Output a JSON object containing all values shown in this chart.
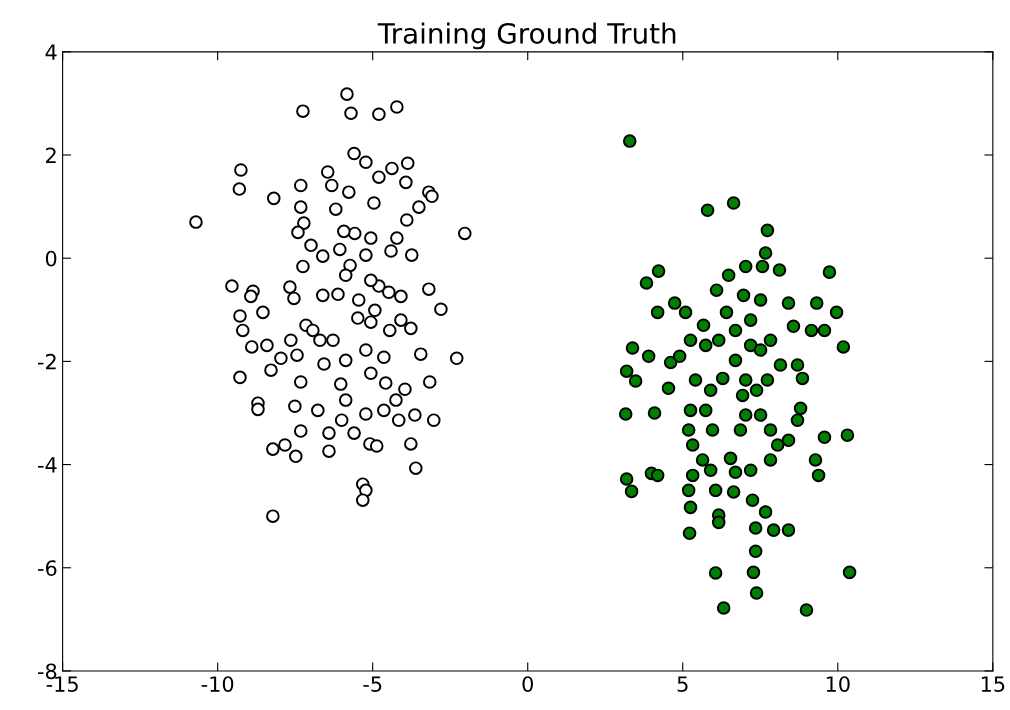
{
  "chart_data": {
    "type": "scatter",
    "title": "Training Ground Truth",
    "marker": "circle",
    "grid": false,
    "xlim": [
      -15,
      15
    ],
    "xticks": [
      -15,
      -10,
      -5,
      0,
      5,
      10,
      15
    ],
    "ylim": [
      -8,
      4
    ],
    "yticks": [
      -8,
      -6,
      -4,
      -2,
      0,
      2,
      4
    ],
    "series": [
      {
        "color": "#ffffff",
        "x": [
          -10.7,
          -7.25,
          -5.83,
          -5.7,
          -4.8,
          -4.22,
          -9.25,
          -9.3,
          -8.19,
          -5.6,
          -5.22,
          -3.87,
          -4.38,
          -4.8,
          -3.93,
          -7.32,
          -6.45,
          -6.32,
          -3.19,
          -3.09,
          -2.03,
          -5.77,
          -4.96,
          -7.32,
          -3.51,
          -3.9,
          -6.19,
          -7.22,
          -7.41,
          -5.58,
          -5.93,
          -6.06,
          -5.06,
          -4.22,
          -4.41,
          -6.99,
          -7.25,
          -6.61,
          -5.22,
          -5.73,
          -3.74,
          -9.54,
          -8.86,
          -8.93,
          -7.67,
          -7.54,
          -6.61,
          -6.12,
          -4.8,
          -4.09,
          -3.19,
          -2.8,
          -5.45,
          -4.48,
          -9.28,
          -8.54,
          -9.19,
          -8.9,
          -8.41,
          -7.15,
          -6.7,
          -6.28,
          -5.48,
          -5.06,
          -4.45,
          -3.77,
          -3.45,
          -2.29,
          -9.28,
          -8.28,
          -7.96,
          -7.44,
          -6.57,
          -7.32,
          -6.03,
          -5.06,
          -4.58,
          -3.96,
          -3.16,
          -8.7,
          -8.7,
          -7.51,
          -6.77,
          -6.0,
          -5.22,
          -4.64,
          -4.16,
          -3.64,
          -3.03,
          -6.41,
          -7.32,
          -5.6,
          -5.09,
          -4.87,
          -3.77,
          -3.61,
          -8.22,
          -7.83,
          -7.48,
          -6.41,
          -5.32,
          -5.22,
          -5.32,
          -8.22,
          -5.87,
          -5.06,
          -4.93,
          -4.09,
          -5.22,
          -5.87,
          -4.64,
          -4.25,
          -5.87,
          -6.93,
          -7.64
        ],
        "values": [
          0.7,
          2.85,
          3.18,
          2.81,
          2.79,
          2.93,
          1.71,
          1.34,
          1.16,
          2.03,
          1.86,
          1.84,
          1.74,
          1.57,
          1.47,
          1.41,
          1.67,
          1.41,
          1.28,
          1.2,
          0.48,
          1.28,
          1.07,
          0.99,
          0.99,
          0.74,
          0.95,
          0.68,
          0.5,
          0.48,
          0.52,
          0.17,
          0.39,
          0.39,
          0.14,
          0.25,
          -0.16,
          0.04,
          0.06,
          -0.14,
          0.06,
          -0.54,
          -0.64,
          -0.74,
          -0.56,
          -0.78,
          -0.72,
          -0.7,
          -0.54,
          -0.74,
          -0.6,
          -0.99,
          -0.81,
          -0.66,
          -1.12,
          -1.05,
          -1.4,
          -1.72,
          -1.69,
          -1.3,
          -1.59,
          -1.59,
          -1.16,
          -1.24,
          -1.4,
          -1.36,
          -1.86,
          -1.94,
          -2.31,
          -2.17,
          -1.94,
          -1.88,
          -2.05,
          -2.4,
          -2.44,
          -2.23,
          -2.42,
          -2.54,
          -2.4,
          -2.81,
          -2.93,
          -2.87,
          -2.95,
          -3.14,
          -3.02,
          -2.95,
          -3.14,
          -3.04,
          -3.14,
          -3.39,
          -3.35,
          -3.39,
          -3.6,
          -3.64,
          -3.6,
          -4.07,
          -3.7,
          -3.62,
          -3.84,
          -3.74,
          -4.38,
          -4.5,
          -4.69,
          -5.0,
          -0.33,
          -0.43,
          -1.01,
          -1.2,
          -1.78,
          -1.98,
          -1.92,
          -2.75,
          -2.75,
          -1.4,
          -1.59
        ]
      },
      {
        "color": "#008000",
        "x": [
          3.29,
          5.8,
          6.64,
          7.73,
          7.67,
          9.73,
          4.22,
          3.83,
          7.57,
          7.03,
          6.48,
          8.12,
          4.74,
          4.19,
          5.09,
          6.09,
          6.96,
          8.41,
          9.96,
          9.32,
          8.57,
          9.15,
          9.57,
          10.18,
          3.38,
          3.9,
          3.19,
          3.48,
          3.16,
          3.19,
          3.35,
          4.09,
          3.99,
          4.19,
          4.54,
          4.61,
          4.9,
          5.25,
          5.74,
          6.16,
          5.67,
          5.25,
          5.19,
          5.32,
          5.64,
          5.32,
          5.19,
          5.25,
          5.22,
          5.9,
          6.06,
          6.16,
          6.16,
          6.54,
          6.64,
          6.7,
          7.19,
          7.25,
          7.35,
          7.67,
          8.41,
          7.93,
          7.35,
          6.06,
          7.28,
          7.38,
          6.32,
          8.99,
          10.38,
          10.31,
          9.57,
          9.28,
          9.38,
          8.8,
          8.7,
          8.41,
          8.06,
          7.83,
          7.51,
          7.03,
          6.93,
          7.38,
          7.73,
          8.15,
          8.7,
          8.86,
          7.83,
          7.19,
          6.7,
          7.03,
          6.29,
          5.9,
          5.74,
          5.96,
          6.86,
          7.83,
          7.51,
          6.7,
          7.19,
          5.41,
          7.51,
          6.41
        ],
        "values": [
          2.27,
          0.93,
          1.07,
          0.54,
          0.1,
          -0.27,
          -0.25,
          -0.48,
          -0.16,
          -0.16,
          -0.33,
          -0.23,
          -0.87,
          -1.05,
          -1.05,
          -0.62,
          -0.72,
          -0.87,
          -1.05,
          -0.87,
          -1.32,
          -1.4,
          -1.4,
          -1.72,
          -1.74,
          -1.9,
          -2.19,
          -2.38,
          -3.02,
          -4.28,
          -4.52,
          -3.0,
          -4.17,
          -4.21,
          -2.52,
          -2.02,
          -1.9,
          -1.59,
          -1.69,
          -1.59,
          -1.3,
          -2.95,
          -3.33,
          -3.62,
          -3.91,
          -4.21,
          -4.5,
          -4.83,
          -5.33,
          -4.11,
          -4.5,
          -4.98,
          -5.12,
          -3.88,
          -4.53,
          -4.15,
          -4.11,
          -4.69,
          -5.23,
          -4.92,
          -5.27,
          -5.27,
          -5.68,
          -6.1,
          -6.09,
          -6.49,
          -6.78,
          -6.82,
          -6.09,
          -3.43,
          -3.47,
          -3.91,
          -4.21,
          -2.91,
          -3.14,
          -3.53,
          -3.62,
          -3.91,
          -3.04,
          -3.04,
          -2.66,
          -2.56,
          -2.36,
          -2.07,
          -2.07,
          -2.33,
          -1.59,
          -1.69,
          -1.98,
          -2.36,
          -2.33,
          -2.56,
          -2.95,
          -3.33,
          -3.33,
          -3.33,
          -1.78,
          -1.4,
          -1.2,
          -2.36,
          -0.81,
          -1.05
        ]
      }
    ]
  }
}
